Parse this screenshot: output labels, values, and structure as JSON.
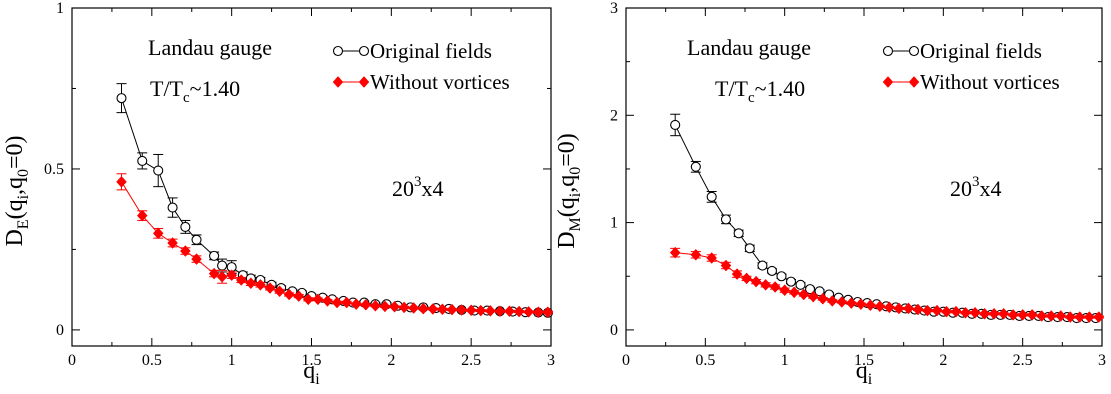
{
  "chart_data": [
    {
      "type": "scatter",
      "ylabel": {
        "main": "D",
        "sub": "E",
        "rest": "(q",
        "sub2": "i",
        "mid": ",q",
        "sub3": "0",
        "tail": "=0)"
      },
      "xlabel": {
        "main": "q",
        "sub": "i"
      },
      "xlim": [
        0,
        3
      ],
      "ylim": [
        -0.05,
        1.0
      ],
      "xticks": [
        {
          "v": 0,
          "label": "0"
        },
        {
          "v": 0.5,
          "label": "0.5"
        },
        {
          "v": 1,
          "label": "1"
        },
        {
          "v": 1.5,
          "label": "1.5"
        },
        {
          "v": 2,
          "label": "2"
        },
        {
          "v": 2.5,
          "label": "2.5"
        },
        {
          "v": 3,
          "label": "3"
        }
      ],
      "yticks": [
        {
          "v": 0,
          "label": "0"
        },
        {
          "v": 0.5,
          "label": "0.5"
        },
        {
          "v": 1,
          "label": "1"
        }
      ],
      "annotations": {
        "gauge": "Landau gauge",
        "temp": {
          "a": "T/T",
          "sub": "c",
          "b": "~1.40"
        },
        "lattice": {
          "a": "20",
          "sup": "3",
          "b": "x4"
        }
      },
      "series": [
        {
          "name": "Original fields",
          "marker": "circle",
          "color": "#000000",
          "x": [
            0.31,
            0.44,
            0.54,
            0.63,
            0.71,
            0.78,
            0.89,
            0.94,
            1.0,
            1.07,
            1.12,
            1.18,
            1.25,
            1.31,
            1.38,
            1.44,
            1.5,
            1.57,
            1.63,
            1.7,
            1.76,
            1.83,
            1.9,
            1.97,
            2.04,
            2.12,
            2.2,
            2.28,
            2.36,
            2.44,
            2.52,
            2.6,
            2.68,
            2.76,
            2.84,
            2.92,
            2.98
          ],
          "y": [
            0.72,
            0.525,
            0.495,
            0.38,
            0.32,
            0.28,
            0.23,
            0.2,
            0.195,
            0.17,
            0.16,
            0.155,
            0.14,
            0.13,
            0.12,
            0.115,
            0.105,
            0.1,
            0.095,
            0.09,
            0.085,
            0.085,
            0.08,
            0.08,
            0.075,
            0.07,
            0.07,
            0.068,
            0.065,
            0.062,
            0.06,
            0.06,
            0.058,
            0.057,
            0.055,
            0.054,
            0.053
          ],
          "err": [
            0.045,
            0.025,
            0.05,
            0.03,
            0.02,
            0.015,
            0.012,
            0.02,
            0.02,
            0.01,
            0.01,
            0.008,
            0.008,
            0.007,
            0.006,
            0.006,
            0.006,
            0.005,
            0.005,
            0.005,
            0.004,
            0.004,
            0.004,
            0.004,
            0.004,
            0.004,
            0.003,
            0.003,
            0.003,
            0.003,
            0.003,
            0.003,
            0.003,
            0.003,
            0.003,
            0.003,
            0.003
          ]
        },
        {
          "name": "Without vortices",
          "marker": "diamond",
          "color": "#ff0000",
          "x": [
            0.31,
            0.44,
            0.54,
            0.63,
            0.71,
            0.78,
            0.89,
            0.94,
            1.0,
            1.06,
            1.12,
            1.18,
            1.24,
            1.3,
            1.36,
            1.42,
            1.48,
            1.54,
            1.6,
            1.66,
            1.72,
            1.78,
            1.84,
            1.9,
            1.96,
            2.02,
            2.08,
            2.14,
            2.2,
            2.26,
            2.32,
            2.38,
            2.44,
            2.5,
            2.56,
            2.62,
            2.68,
            2.74,
            2.8,
            2.86,
            2.92,
            2.98
          ],
          "y": [
            0.46,
            0.355,
            0.3,
            0.27,
            0.245,
            0.22,
            0.175,
            0.165,
            0.17,
            0.155,
            0.145,
            0.14,
            0.13,
            0.12,
            0.11,
            0.105,
            0.095,
            0.095,
            0.09,
            0.085,
            0.085,
            0.08,
            0.078,
            0.075,
            0.073,
            0.072,
            0.07,
            0.068,
            0.066,
            0.065,
            0.064,
            0.063,
            0.062,
            0.061,
            0.06,
            0.059,
            0.058,
            0.058,
            0.057,
            0.056,
            0.055,
            0.055
          ],
          "err": [
            0.025,
            0.015,
            0.015,
            0.012,
            0.01,
            0.01,
            0.01,
            0.02,
            0.01,
            0.008,
            0.007,
            0.007,
            0.006,
            0.006,
            0.005,
            0.005,
            0.005,
            0.004,
            0.004,
            0.004,
            0.004,
            0.004,
            0.003,
            0.003,
            0.003,
            0.003,
            0.003,
            0.003,
            0.003,
            0.003,
            0.003,
            0.003,
            0.003,
            0.003,
            0.003,
            0.003,
            0.003,
            0.003,
            0.003,
            0.003,
            0.003,
            0.003
          ]
        }
      ]
    },
    {
      "type": "scatter",
      "ylabel": {
        "main": "D",
        "sub": "M",
        "rest": "(q",
        "sub2": "i",
        "mid": ",q",
        "sub3": "0",
        "tail": "=0)"
      },
      "xlabel": {
        "main": "q",
        "sub": "i"
      },
      "xlim": [
        0,
        3
      ],
      "ylim": [
        -0.15,
        3.0
      ],
      "xticks": [
        {
          "v": 0,
          "label": "0"
        },
        {
          "v": 0.5,
          "label": "0.5"
        },
        {
          "v": 1,
          "label": "1"
        },
        {
          "v": 1.5,
          "label": "1.5"
        },
        {
          "v": 2,
          "label": "2"
        },
        {
          "v": 2.5,
          "label": "2.5"
        },
        {
          "v": 3,
          "label": "3"
        }
      ],
      "yticks": [
        {
          "v": 0,
          "label": "0"
        },
        {
          "v": 1,
          "label": "1"
        },
        {
          "v": 2,
          "label": "2"
        },
        {
          "v": 3,
          "label": "3"
        }
      ],
      "annotations": {
        "gauge": "Landau gauge",
        "temp": {
          "a": "T/T",
          "sub": "c",
          "b": "~1.40"
        },
        "lattice": {
          "a": "20",
          "sup": "3",
          "b": "x4"
        }
      },
      "series": [
        {
          "name": "Original fields",
          "marker": "circle",
          "color": "#000000",
          "x": [
            0.31,
            0.44,
            0.54,
            0.63,
            0.71,
            0.78,
            0.86,
            0.92,
            0.98,
            1.04,
            1.1,
            1.16,
            1.22,
            1.28,
            1.34,
            1.4,
            1.46,
            1.52,
            1.58,
            1.64,
            1.7,
            1.76,
            1.82,
            1.88,
            1.94,
            2.0,
            2.06,
            2.12,
            2.18,
            2.24,
            2.3,
            2.36,
            2.42,
            2.48,
            2.54,
            2.6,
            2.66,
            2.72,
            2.78,
            2.84,
            2.9,
            2.96
          ],
          "y": [
            1.91,
            1.52,
            1.24,
            1.03,
            0.9,
            0.76,
            0.6,
            0.55,
            0.5,
            0.45,
            0.42,
            0.38,
            0.36,
            0.33,
            0.3,
            0.28,
            0.26,
            0.25,
            0.24,
            0.22,
            0.21,
            0.2,
            0.19,
            0.18,
            0.17,
            0.17,
            0.16,
            0.16,
            0.15,
            0.15,
            0.14,
            0.14,
            0.14,
            0.13,
            0.13,
            0.13,
            0.12,
            0.12,
            0.12,
            0.11,
            0.11,
            0.11
          ],
          "err": [
            0.1,
            0.05,
            0.05,
            0.04,
            0.03,
            0.03,
            0.025,
            0.02,
            0.02,
            0.02,
            0.02,
            0.015,
            0.015,
            0.015,
            0.012,
            0.012,
            0.01,
            0.01,
            0.01,
            0.01,
            0.01,
            0.01,
            0.01,
            0.01,
            0.01,
            0.01,
            0.01,
            0.01,
            0.01,
            0.01,
            0.01,
            0.01,
            0.01,
            0.01,
            0.01,
            0.01,
            0.01,
            0.01,
            0.01,
            0.01,
            0.01,
            0.01
          ]
        },
        {
          "name": "Without vortices",
          "marker": "diamond",
          "color": "#ff0000",
          "x": [
            0.31,
            0.44,
            0.54,
            0.63,
            0.7,
            0.76,
            0.82,
            0.88,
            0.94,
            1.0,
            1.06,
            1.12,
            1.18,
            1.24,
            1.3,
            1.36,
            1.42,
            1.48,
            1.54,
            1.6,
            1.66,
            1.72,
            1.78,
            1.84,
            1.9,
            1.96,
            2.02,
            2.08,
            2.14,
            2.2,
            2.26,
            2.32,
            2.38,
            2.44,
            2.5,
            2.56,
            2.62,
            2.68,
            2.74,
            2.8,
            2.86,
            2.92,
            2.98
          ],
          "y": [
            0.72,
            0.7,
            0.67,
            0.6,
            0.52,
            0.48,
            0.45,
            0.42,
            0.4,
            0.37,
            0.35,
            0.33,
            0.31,
            0.29,
            0.27,
            0.26,
            0.25,
            0.24,
            0.23,
            0.22,
            0.21,
            0.2,
            0.2,
            0.19,
            0.18,
            0.18,
            0.17,
            0.17,
            0.16,
            0.16,
            0.15,
            0.15,
            0.15,
            0.14,
            0.14,
            0.14,
            0.13,
            0.13,
            0.13,
            0.12,
            0.12,
            0.12,
            0.12
          ],
          "err": [
            0.04,
            0.03,
            0.03,
            0.03,
            0.03,
            0.02,
            0.02,
            0.02,
            0.02,
            0.02,
            0.015,
            0.015,
            0.015,
            0.012,
            0.012,
            0.01,
            0.01,
            0.01,
            0.01,
            0.01,
            0.01,
            0.01,
            0.01,
            0.01,
            0.01,
            0.01,
            0.01,
            0.01,
            0.01,
            0.01,
            0.01,
            0.01,
            0.01,
            0.01,
            0.01,
            0.01,
            0.01,
            0.01,
            0.01,
            0.01,
            0.01,
            0.01,
            0.01
          ]
        }
      ]
    }
  ]
}
